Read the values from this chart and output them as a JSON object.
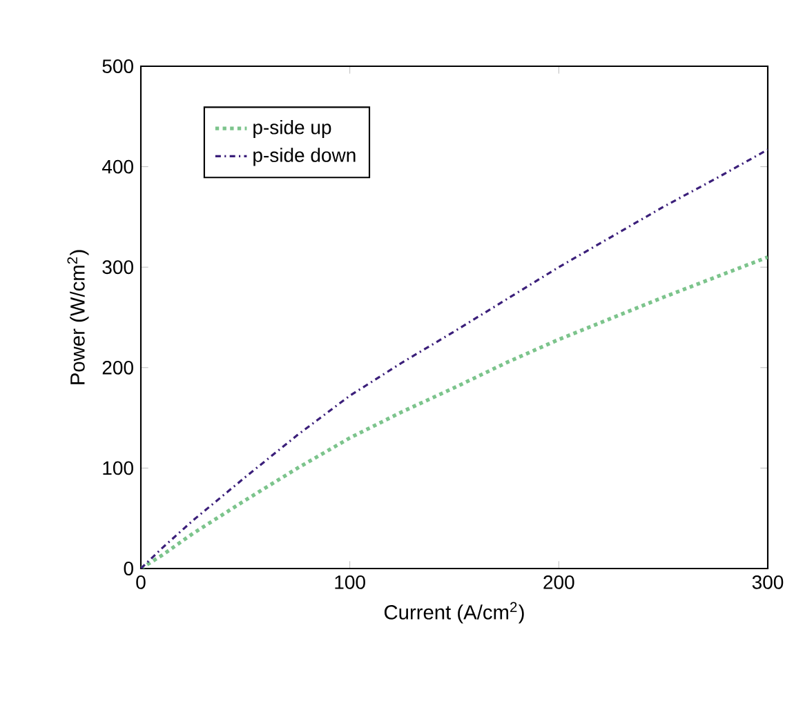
{
  "chart_data": {
    "type": "line",
    "xlabel": "Current (A/cm$^{2}$)",
    "ylabel": "Power (W/cm$^{2}$)",
    "x": [
      0,
      10,
      25,
      50,
      75,
      100,
      125,
      150,
      175,
      200,
      225,
      250,
      275,
      300
    ],
    "series": [
      {
        "name": "p-side up",
        "color": "#7cc48c",
        "line_style": "dotted",
        "values": [
          0,
          13,
          35,
          68,
          100,
          130,
          156,
          180,
          205,
          228,
          249,
          270,
          290,
          310
        ]
      },
      {
        "name": "p-side down",
        "color": "#3b1f7a",
        "line_style": "dashdot",
        "values": [
          0,
          20,
          48,
          91,
          133,
          172,
          205,
          236,
          268,
          300,
          330,
          360,
          388,
          417
        ]
      }
    ],
    "xlim": [
      0,
      300
    ],
    "ylim": [
      0,
      500
    ],
    "xticks": [
      0,
      100,
      200,
      300
    ],
    "yticks": [
      0,
      100,
      200,
      300,
      400,
      500
    ],
    "legend": "top left",
    "grid": false
  }
}
